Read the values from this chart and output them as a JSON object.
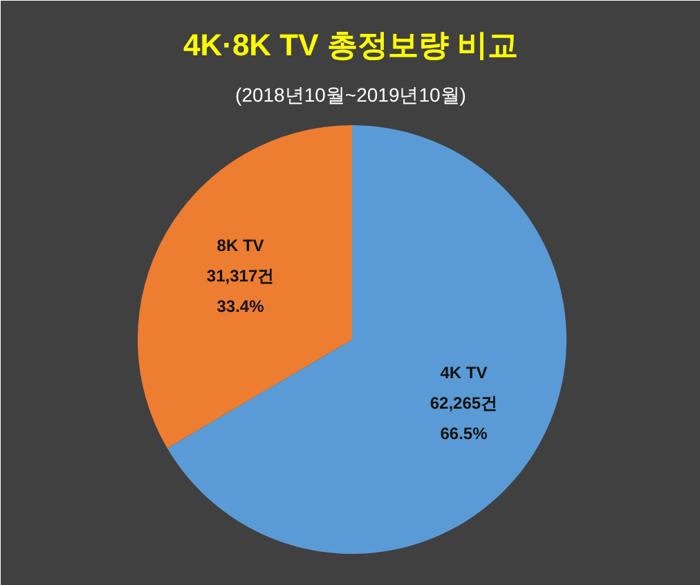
{
  "chart_data": {
    "type": "pie",
    "title": "4K·8K TV 총정보량 비교",
    "subtitle": "(2018년10월~2019년10월)",
    "categories": [
      "4K TV",
      "8K TV"
    ],
    "values": [
      62265,
      31317
    ],
    "value_labels": [
      "62,265건\n66.5%",
      "31,317건\n33.4%"
    ],
    "colors": [
      "#5b9bd5",
      "#ed7d31"
    ]
  }
}
